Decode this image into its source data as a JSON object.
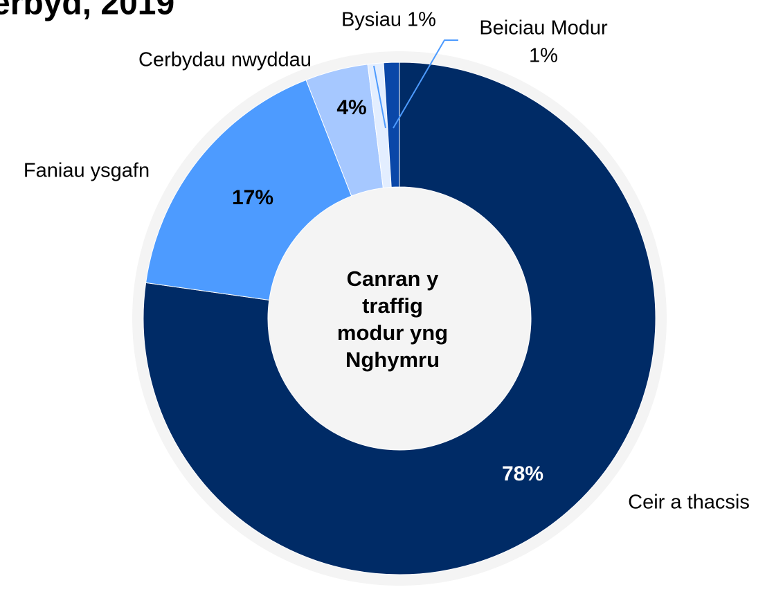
{
  "chart_data": {
    "type": "donut",
    "title": "erbyd, 2019",
    "center_text": [
      "Canran y",
      "traffig",
      "modur yng",
      "Nghymru"
    ],
    "categories": [
      "Ceir a thacsis",
      "Faniau ysgafn",
      "Cerbydau nwyddau",
      "Bysiau",
      "Beiciau Modur"
    ],
    "values": [
      78,
      17,
      4,
      1,
      1
    ],
    "value_labels": [
      "78%",
      "17%",
      "4%",
      "1%",
      "1%"
    ],
    "colors": [
      "#002b66",
      "#4d9bff",
      "#a6c8ff",
      "#e3eeff",
      "#0a47a8"
    ]
  }
}
